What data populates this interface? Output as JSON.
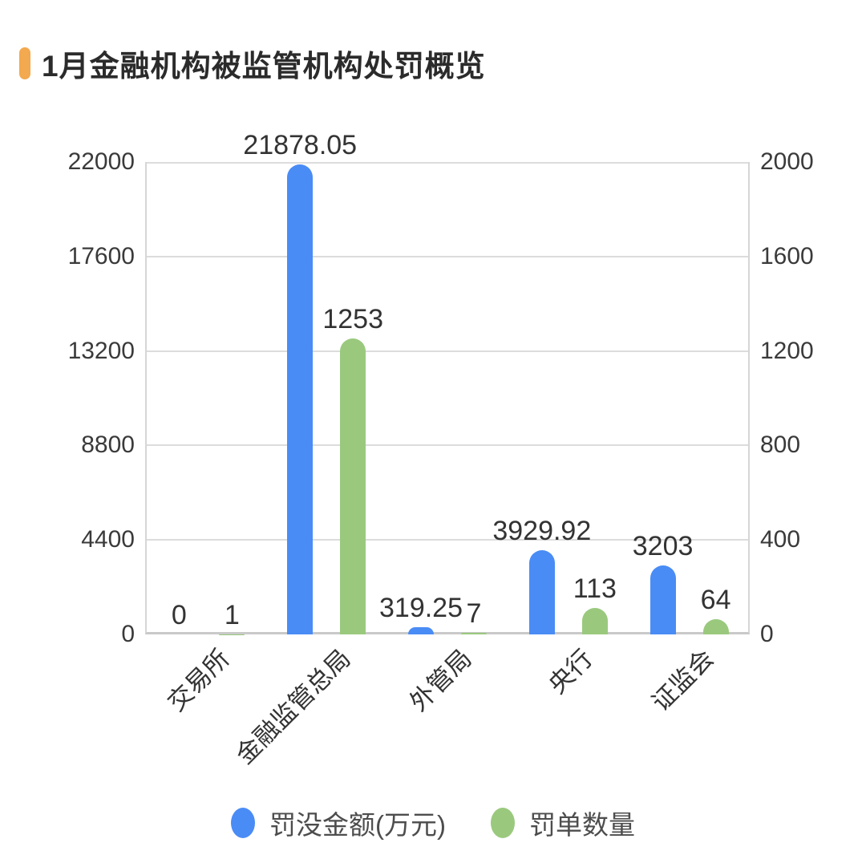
{
  "title": "1月金融机构被监管机构处罚概览",
  "accent_color": "#f3a94f",
  "chart_data": {
    "type": "bar",
    "title": "1月金融机构被监管机构处罚概览",
    "categories": [
      "交易所",
      "金融监管总局",
      "外管局",
      "央行",
      "证监会"
    ],
    "series": [
      {
        "name": "罚没金额(万元)",
        "axis": "left",
        "color": "#4a8cf5",
        "values": [
          0,
          21878.05,
          319.25,
          3929.92,
          3203
        ],
        "labels": [
          "0",
          "21878.05",
          "319.25",
          "3929.92",
          "3203"
        ]
      },
      {
        "name": "罚单数量",
        "axis": "right",
        "color": "#9ac97e",
        "values": [
          1,
          1253,
          7,
          113,
          64
        ],
        "labels": [
          "1",
          "1253",
          "7",
          "113",
          "64"
        ]
      }
    ],
    "y_axis_left": {
      "min": 0,
      "max": 22000,
      "ticks": [
        0,
        4400,
        8800,
        13200,
        17600,
        22000
      ]
    },
    "y_axis_right": {
      "min": 0,
      "max": 2000,
      "ticks": [
        0,
        400,
        800,
        1200,
        1600,
        2000
      ]
    },
    "grid": true,
    "x_label_rotation": -45,
    "legend_position": "bottom",
    "colors": {
      "gridline": "#dcdcdc",
      "axis_line": "#d6d6d6",
      "tick_text": "#3a3a3a",
      "data_label_text": "#333333",
      "legend_text": "#4d4d4d"
    }
  }
}
